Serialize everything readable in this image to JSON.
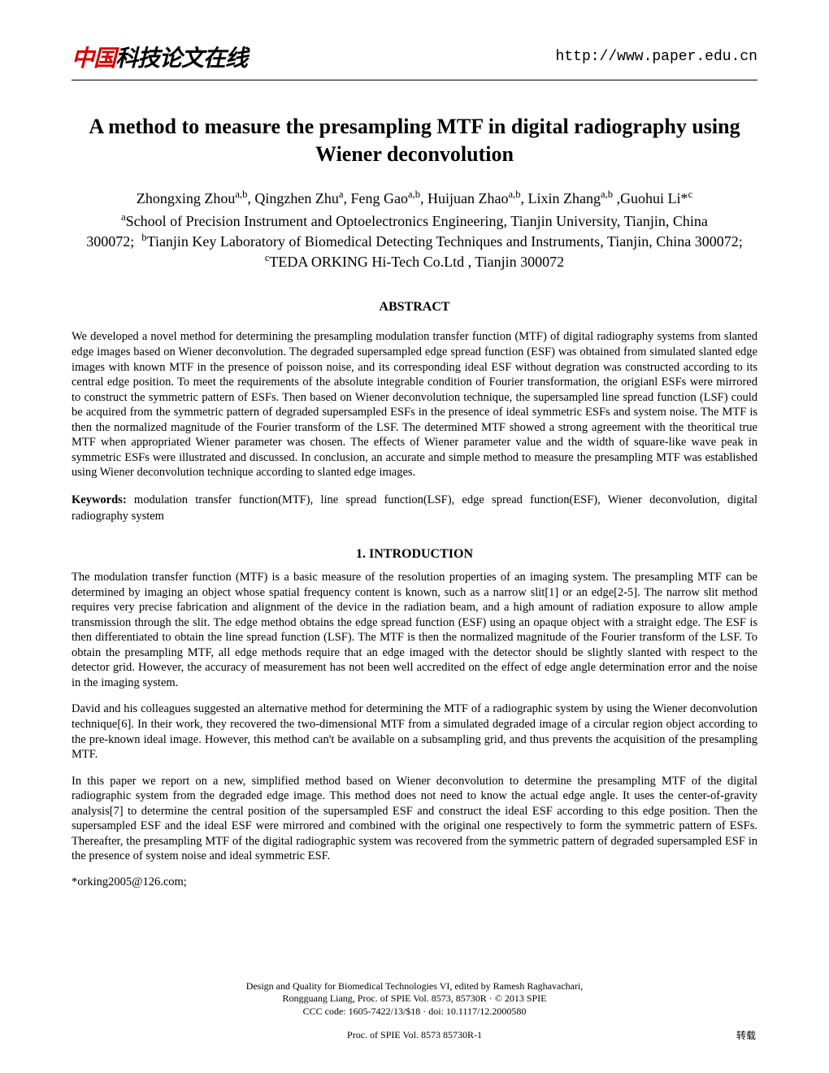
{
  "header": {
    "logo_red": "中国",
    "logo_black": "科技论文在线",
    "url": "http://www.paper.edu.cn"
  },
  "title": "A method to measure the presampling MTF in digital radiography using Wiener deconvolution",
  "authors_html": "Zhongxing Zhou<sup>a,b</sup>, Qingzhen Zhu<sup>a</sup>, Feng Gao<sup>a,b</sup>, Huijuan Zhao<sup>a,b</sup>, Lixin Zhang<sup>a,b</sup> ,Guohui Li*<sup>c</sup>",
  "affiliations_html": "<sup>a</sup>School of Precision Instrument and Optoelectronics Engineering, Tianjin University, Tianjin, China 300072;&nbsp;&nbsp;<sup>b</sup>Tianjin Key Laboratory of Biomedical Detecting Techniques and Instruments, Tianjin, China 300072; <sup>c</sup>TEDA ORKING Hi-Tech Co.Ltd , Tianjin 300072",
  "abstract_heading": "ABSTRACT",
  "abstract_text": "We developed a novel method for determining the presampling modulation transfer function (MTF) of digital radiography systems from slanted edge images based on Wiener deconvolution. The degraded supersampled edge spread function (ESF) was obtained from simulated slanted edge images with known MTF in the presence of poisson noise, and its corresponding ideal ESF without degration was constructed according to its central edge position. To meet the requirements of the absolute integrable condition of Fourier transformation, the origianl ESFs were mirrored to construct the symmetric pattern of ESFs. Then based on Wiener deconvolution technique, the supersampled line spread function (LSF) could be acquired from the symmetric pattern of degraded supersampled ESFs in the presence of ideal symmetric ESFs and system noise. The MTF is then the normalized magnitude of the Fourier transform of the LSF. The determined MTF showed a strong agreement with the theoritical true MTF when appropriated Wiener parameter was chosen. The effects of Wiener parameter value and the width of square-like wave peak in symmetric ESFs were illustrated and discussed. In conclusion, an accurate and simple method to measure the presampling MTF was established using Wiener deconvolution technique according to slanted edge images.",
  "keywords_label": "Keywords:",
  "keywords_text": " modulation transfer function(MTF), line spread function(LSF), edge spread function(ESF), Wiener deconvolution, digital radiography system",
  "section_heading": "1.  INTRODUCTION",
  "para1": "The modulation transfer function (MTF) is a basic measure of the resolution properties of an imaging system. The presampling MTF can be determined by imaging an object whose spatial frequency content is known, such as a narrow slit[1] or an edge[2-5]. The narrow slit method requires very precise fabrication and alignment of the device in the radiation beam, and a high amount of radiation exposure to allow ample transmission through the slit. The edge method obtains the edge spread function (ESF) using an opaque object with a straight edge. The ESF is then differentiated to obtain the line spread function (LSF). The MTF is then the normalized magnitude of the Fourier transform of the LSF. To obtain the presampling MTF, all edge methods require that an edge imaged with the detector should be slightly slanted with respect to the detector grid. However, the accuracy of measurement has not been well accredited on the effect of edge angle determination error and the noise in the imaging system.",
  "para2": "David and his colleagues suggested an alternative method for determining the MTF of a radiographic system by using the Wiener deconvolution technique[6]. In their work, they recovered the two-dimensional MTF from a simulated degraded image of a circular region object according to the pre-known ideal image.  However, this method can't be available on a subsampling grid, and thus prevents the acquisition of the presampling MTF.",
  "para3": "In this paper we report on a new, simplified method based on Wiener deconvolution to determine the presampling MTF of the digital radiographic system from the degraded edge image. This method does not need to know the actual edge angle.  It uses the center-of-gravity analysis[7] to determine the central position of the supersampled ESF and construct the ideal ESF according to this edge position. Then the supersampled ESF and the ideal ESF were mirrored and combined with the original one respectively to form the symmetric pattern of ESFs. Thereafter, the presampling MTF of the digital radiographic system was recovered from the symmetric pattern of degraded supersampled ESF in the presence of system noise and ideal symmetric ESF.",
  "corresponding": "*orking2005@126.com;",
  "footer": {
    "line1": "Design and Quality for Biomedical Technologies VI, edited by Ramesh Raghavachari,",
    "line2": "Rongguang Liang, Proc. of SPIE Vol. 8573, 85730R · © 2013 SPIE",
    "line3": "CCC code: 1605-7422/13/$18 · doi: 10.1117/12.2000580",
    "proc": "Proc. of SPIE Vol. 8573  85730R-1",
    "note": "转载"
  }
}
